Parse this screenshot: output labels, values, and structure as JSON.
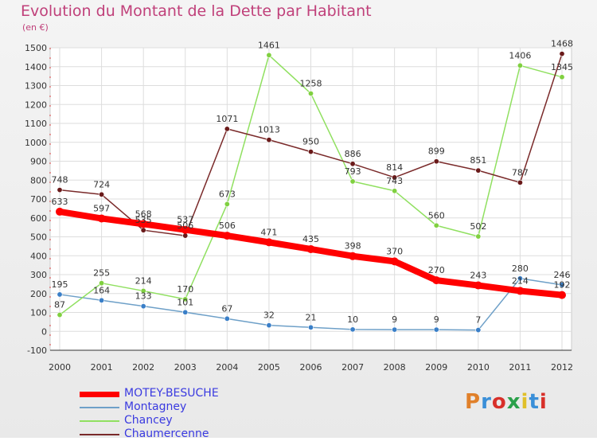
{
  "header": {
    "title": "Evolution du Montant de la Dette par Habitant",
    "unit": "(en €)"
  },
  "logo": {
    "text": "Proxiti",
    "colors": [
      "#e0802a",
      "#3a8fd8",
      "#d8302a",
      "#2aa04a",
      "#e0c02a",
      "#3a8fd8",
      "#d8302a"
    ]
  },
  "chart_data": {
    "type": "line",
    "x": [
      "2000",
      "2001",
      "2002",
      "2003",
      "2004",
      "2005",
      "2006",
      "2007",
      "2008",
      "2009",
      "2010",
      "2011",
      "2012"
    ],
    "ylim": [
      -100,
      1500
    ],
    "yticks": [
      -100,
      0,
      100,
      200,
      300,
      400,
      500,
      600,
      700,
      800,
      900,
      1000,
      1100,
      1200,
      1300,
      1400,
      1500
    ],
    "grid": true,
    "legend_position": "bottom-left",
    "series": [
      {
        "name": "MOTEY-BESUCHE",
        "color": "#ff0000",
        "marker": "#ff0000",
        "width": 8,
        "values": [
          633,
          597,
          568,
          537,
          506,
          471,
          435,
          398,
          370,
          270,
          243,
          214,
          192
        ]
      },
      {
        "name": "Montagney",
        "color": "#6ea0c8",
        "marker": "#3a7fc8",
        "width": 1.5,
        "values": [
          195,
          164,
          133,
          101,
          67,
          32,
          21,
          10,
          9,
          9,
          7,
          280,
          246
        ]
      },
      {
        "name": "Chancey",
        "color": "#90e060",
        "marker": "#80d040",
        "width": 1.5,
        "values": [
          87,
          255,
          214,
          170,
          673,
          1461,
          1258,
          793,
          743,
          560,
          502,
          1406,
          1345
        ]
      },
      {
        "name": "Chaumercenne",
        "color": "#7a2a2a",
        "marker": "#6a1a1a",
        "width": 1.5,
        "values": [
          748,
          724,
          535,
          506,
          1071,
          1013,
          950,
          886,
          814,
          899,
          851,
          787,
          1468
        ]
      }
    ]
  }
}
